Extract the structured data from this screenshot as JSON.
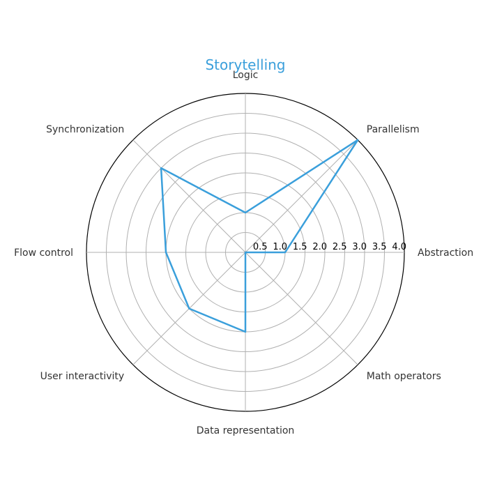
{
  "chart_data": {
    "type": "radar",
    "title": "Storytelling",
    "categories": [
      "Abstraction",
      "Parallelism",
      "Logic",
      "Synchronization",
      "Flow control",
      "User interactivity",
      "Data representation",
      "Math operators"
    ],
    "series": [
      {
        "values": [
          1.0,
          4.0,
          1.0,
          3.0,
          2.0,
          2.0,
          2.0,
          0.0
        ]
      }
    ],
    "rlim": [
      0,
      4.0
    ],
    "r_ticks": [
      "0.5",
      "1.0",
      "1.5",
      "2.0",
      "2.5",
      "3.0",
      "3.5",
      "4.0"
    ],
    "grid": true
  },
  "colors": {
    "series": "#3a9fdb",
    "title": "#3a9fdb",
    "grid": "#b0b0b0",
    "outline": "#000000"
  }
}
